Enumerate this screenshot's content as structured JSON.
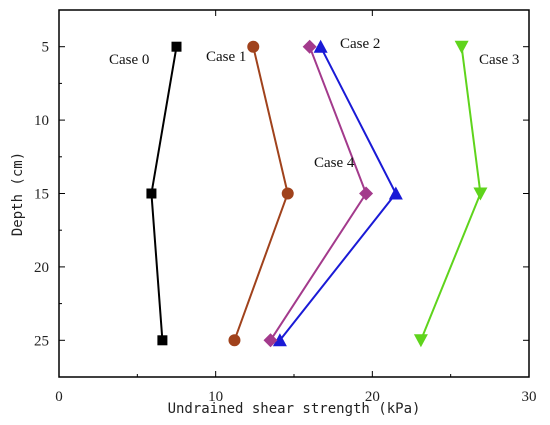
{
  "chart_data": {
    "type": "line",
    "xlabel": "Undrained shear strength (kPa)",
    "ylabel": "Depth (cm)",
    "xlim": [
      0,
      30
    ],
    "ylim": [
      2.5,
      27.5
    ],
    "y_inverted": true,
    "x_ticks": [
      0,
      10,
      20,
      30
    ],
    "y_ticks": [
      5,
      10,
      15,
      20,
      25
    ],
    "grid": false,
    "legend": "inline labels",
    "series": [
      {
        "name": "Case 0",
        "color": "#000000",
        "marker": "square",
        "points": [
          {
            "x": 7.5,
            "y": 5
          },
          {
            "x": 5.9,
            "y": 15
          },
          {
            "x": 6.6,
            "y": 25
          }
        ]
      },
      {
        "name": "Case 1",
        "color": "#a0421c",
        "marker": "circle",
        "points": [
          {
            "x": 12.4,
            "y": 5
          },
          {
            "x": 14.6,
            "y": 15
          },
          {
            "x": 11.2,
            "y": 25
          }
        ]
      },
      {
        "name": "Case 2",
        "color": "#1a1ad6",
        "marker": "triangle-up",
        "points": [
          {
            "x": 16.7,
            "y": 5
          },
          {
            "x": 21.5,
            "y": 15
          },
          {
            "x": 14.1,
            "y": 25
          }
        ]
      },
      {
        "name": "Case 3",
        "color": "#5fd41c",
        "marker": "triangle-down",
        "points": [
          {
            "x": 25.7,
            "y": 5
          },
          {
            "x": 26.9,
            "y": 15
          },
          {
            "x": 23.1,
            "y": 25
          }
        ]
      },
      {
        "name": "Case 4",
        "color": "#a33a8c",
        "marker": "diamond",
        "points": [
          {
            "x": 16.0,
            "y": 5
          },
          {
            "x": 19.6,
            "y": 15
          },
          {
            "x": 13.5,
            "y": 25
          }
        ]
      }
    ],
    "annotations": [
      {
        "text": "Case 0",
        "series": "Case 0"
      },
      {
        "text": "Case 1",
        "series": "Case 1"
      },
      {
        "text": "Case 2",
        "series": "Case 2"
      },
      {
        "text": "Case 3",
        "series": "Case 3"
      },
      {
        "text": "Case 4",
        "series": "Case 4"
      }
    ]
  }
}
